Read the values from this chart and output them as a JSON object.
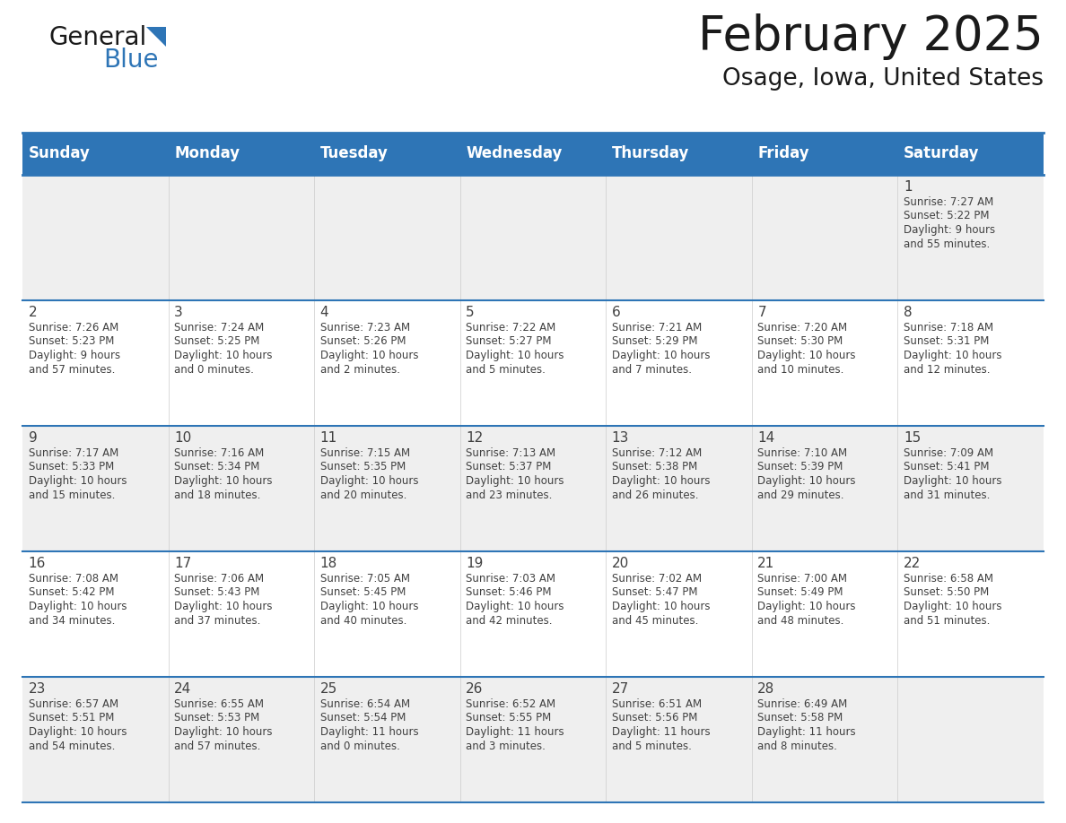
{
  "title": "February 2025",
  "subtitle": "Osage, Iowa, United States",
  "header_bg": "#2E75B6",
  "header_text_color": "#FFFFFF",
  "cell_bg_odd": "#EFEFEF",
  "cell_bg_even": "#FFFFFF",
  "text_color": "#404040",
  "day_headers": [
    "Sunday",
    "Monday",
    "Tuesday",
    "Wednesday",
    "Thursday",
    "Friday",
    "Saturday"
  ],
  "days": [
    {
      "day": 1,
      "col": 6,
      "row": 0,
      "sunrise": "7:27 AM",
      "sunset": "5:22 PM",
      "daylight_h": "9 hours",
      "daylight_m": "55 minutes."
    },
    {
      "day": 2,
      "col": 0,
      "row": 1,
      "sunrise": "7:26 AM",
      "sunset": "5:23 PM",
      "daylight_h": "9 hours",
      "daylight_m": "57 minutes."
    },
    {
      "day": 3,
      "col": 1,
      "row": 1,
      "sunrise": "7:24 AM",
      "sunset": "5:25 PM",
      "daylight_h": "10 hours",
      "daylight_m": "0 minutes."
    },
    {
      "day": 4,
      "col": 2,
      "row": 1,
      "sunrise": "7:23 AM",
      "sunset": "5:26 PM",
      "daylight_h": "10 hours",
      "daylight_m": "2 minutes."
    },
    {
      "day": 5,
      "col": 3,
      "row": 1,
      "sunrise": "7:22 AM",
      "sunset": "5:27 PM",
      "daylight_h": "10 hours",
      "daylight_m": "5 minutes."
    },
    {
      "day": 6,
      "col": 4,
      "row": 1,
      "sunrise": "7:21 AM",
      "sunset": "5:29 PM",
      "daylight_h": "10 hours",
      "daylight_m": "7 minutes."
    },
    {
      "day": 7,
      "col": 5,
      "row": 1,
      "sunrise": "7:20 AM",
      "sunset": "5:30 PM",
      "daylight_h": "10 hours",
      "daylight_m": "10 minutes."
    },
    {
      "day": 8,
      "col": 6,
      "row": 1,
      "sunrise": "7:18 AM",
      "sunset": "5:31 PM",
      "daylight_h": "10 hours",
      "daylight_m": "12 minutes."
    },
    {
      "day": 9,
      "col": 0,
      "row": 2,
      "sunrise": "7:17 AM",
      "sunset": "5:33 PM",
      "daylight_h": "10 hours",
      "daylight_m": "15 minutes."
    },
    {
      "day": 10,
      "col": 1,
      "row": 2,
      "sunrise": "7:16 AM",
      "sunset": "5:34 PM",
      "daylight_h": "10 hours",
      "daylight_m": "18 minutes."
    },
    {
      "day": 11,
      "col": 2,
      "row": 2,
      "sunrise": "7:15 AM",
      "sunset": "5:35 PM",
      "daylight_h": "10 hours",
      "daylight_m": "20 minutes."
    },
    {
      "day": 12,
      "col": 3,
      "row": 2,
      "sunrise": "7:13 AM",
      "sunset": "5:37 PM",
      "daylight_h": "10 hours",
      "daylight_m": "23 minutes."
    },
    {
      "day": 13,
      "col": 4,
      "row": 2,
      "sunrise": "7:12 AM",
      "sunset": "5:38 PM",
      "daylight_h": "10 hours",
      "daylight_m": "26 minutes."
    },
    {
      "day": 14,
      "col": 5,
      "row": 2,
      "sunrise": "7:10 AM",
      "sunset": "5:39 PM",
      "daylight_h": "10 hours",
      "daylight_m": "29 minutes."
    },
    {
      "day": 15,
      "col": 6,
      "row": 2,
      "sunrise": "7:09 AM",
      "sunset": "5:41 PM",
      "daylight_h": "10 hours",
      "daylight_m": "31 minutes."
    },
    {
      "day": 16,
      "col": 0,
      "row": 3,
      "sunrise": "7:08 AM",
      "sunset": "5:42 PM",
      "daylight_h": "10 hours",
      "daylight_m": "34 minutes."
    },
    {
      "day": 17,
      "col": 1,
      "row": 3,
      "sunrise": "7:06 AM",
      "sunset": "5:43 PM",
      "daylight_h": "10 hours",
      "daylight_m": "37 minutes."
    },
    {
      "day": 18,
      "col": 2,
      "row": 3,
      "sunrise": "7:05 AM",
      "sunset": "5:45 PM",
      "daylight_h": "10 hours",
      "daylight_m": "40 minutes."
    },
    {
      "day": 19,
      "col": 3,
      "row": 3,
      "sunrise": "7:03 AM",
      "sunset": "5:46 PM",
      "daylight_h": "10 hours",
      "daylight_m": "42 minutes."
    },
    {
      "day": 20,
      "col": 4,
      "row": 3,
      "sunrise": "7:02 AM",
      "sunset": "5:47 PM",
      "daylight_h": "10 hours",
      "daylight_m": "45 minutes."
    },
    {
      "day": 21,
      "col": 5,
      "row": 3,
      "sunrise": "7:00 AM",
      "sunset": "5:49 PM",
      "daylight_h": "10 hours",
      "daylight_m": "48 minutes."
    },
    {
      "day": 22,
      "col": 6,
      "row": 3,
      "sunrise": "6:58 AM",
      "sunset": "5:50 PM",
      "daylight_h": "10 hours",
      "daylight_m": "51 minutes."
    },
    {
      "day": 23,
      "col": 0,
      "row": 4,
      "sunrise": "6:57 AM",
      "sunset": "5:51 PM",
      "daylight_h": "10 hours",
      "daylight_m": "54 minutes."
    },
    {
      "day": 24,
      "col": 1,
      "row": 4,
      "sunrise": "6:55 AM",
      "sunset": "5:53 PM",
      "daylight_h": "10 hours",
      "daylight_m": "57 minutes."
    },
    {
      "day": 25,
      "col": 2,
      "row": 4,
      "sunrise": "6:54 AM",
      "sunset": "5:54 PM",
      "daylight_h": "11 hours",
      "daylight_m": "0 minutes."
    },
    {
      "day": 26,
      "col": 3,
      "row": 4,
      "sunrise": "6:52 AM",
      "sunset": "5:55 PM",
      "daylight_h": "11 hours",
      "daylight_m": "3 minutes."
    },
    {
      "day": 27,
      "col": 4,
      "row": 4,
      "sunrise": "6:51 AM",
      "sunset": "5:56 PM",
      "daylight_h": "11 hours",
      "daylight_m": "5 minutes."
    },
    {
      "day": 28,
      "col": 5,
      "row": 4,
      "sunrise": "6:49 AM",
      "sunset": "5:58 PM",
      "daylight_h": "11 hours",
      "daylight_m": "8 minutes."
    }
  ],
  "num_rows": 5,
  "num_cols": 7,
  "logo_color1": "#1a1a1a",
  "logo_color2": "#2E75B6",
  "separator_color": "#2E75B6",
  "cell_font_size": 8.5,
  "day_num_font_size": 11,
  "header_font_size": 12
}
